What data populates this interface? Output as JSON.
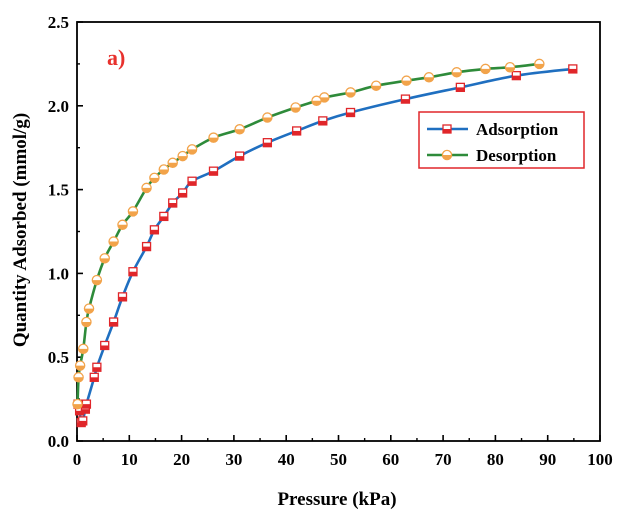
{
  "chart_data": {
    "type": "line",
    "panel_label": "a)",
    "xlabel": "Pressure (kPa)",
    "ylabel": "Quantity Adsorbed (mmol/g)",
    "xlim": [
      0,
      100
    ],
    "ylim": [
      0.0,
      2.5
    ],
    "x_ticks": [
      0,
      10,
      20,
      30,
      40,
      50,
      60,
      70,
      80,
      90,
      100
    ],
    "y_ticks": [
      "0.0",
      "0.5",
      "1.0",
      "1.5",
      "2.0",
      "2.5"
    ],
    "grid": false,
    "legend_position": "right",
    "panel_label_color": "#e8312d",
    "series": [
      {
        "name": "Adsorption",
        "line_color": "#1f6fc0",
        "marker_color": "#e0262a",
        "marker": "half-filled-square",
        "x": [
          0.2,
          0.5,
          0.8,
          1.1,
          1.6,
          1.8,
          3.3,
          3.8,
          5.3,
          7.0,
          8.7,
          10.7,
          13.3,
          14.8,
          16.6,
          18.3,
          20.2,
          22.0,
          26.1,
          31.1,
          36.4,
          42.0,
          47.0,
          52.3,
          62.8,
          73.3,
          84.0,
          94.8
        ],
        "y": [
          0.22,
          0.18,
          0.11,
          0.12,
          0.19,
          0.22,
          0.38,
          0.44,
          0.57,
          0.71,
          0.86,
          1.01,
          1.16,
          1.26,
          1.34,
          1.42,
          1.48,
          1.55,
          1.61,
          1.7,
          1.78,
          1.85,
          1.91,
          1.96,
          2.04,
          2.11,
          2.18,
          2.22
        ]
      },
      {
        "name": "Desorption",
        "line_color": "#2e8b3a",
        "marker_color": "#f2a34a",
        "marker": "half-filled-circle",
        "x": [
          88.4,
          82.8,
          78.1,
          72.6,
          67.3,
          63.0,
          57.2,
          52.3,
          47.3,
          45.8,
          41.8,
          36.4,
          31.1,
          26.1,
          22.0,
          20.2,
          18.3,
          16.6,
          14.8,
          13.3,
          10.7,
          8.7,
          7.0,
          5.3,
          3.8,
          2.3,
          1.8,
          1.2,
          0.6,
          0.3,
          0.1
        ],
        "y": [
          2.25,
          2.23,
          2.22,
          2.2,
          2.17,
          2.15,
          2.12,
          2.08,
          2.05,
          2.03,
          1.99,
          1.93,
          1.86,
          1.81,
          1.74,
          1.7,
          1.66,
          1.62,
          1.57,
          1.51,
          1.37,
          1.29,
          1.19,
          1.09,
          0.96,
          0.79,
          0.71,
          0.55,
          0.45,
          0.38,
          0.22
        ]
      }
    ]
  }
}
